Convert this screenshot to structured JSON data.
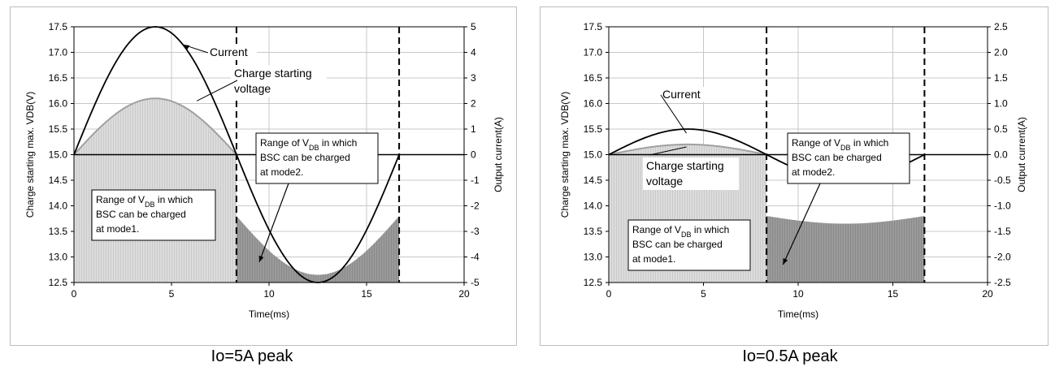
{
  "chart_data": [
    {
      "type": "line",
      "xlabel": "Time(ms)",
      "ylabel_left": "Charge starting max. VDB(V)",
      "ylabel_right": "Output current(A)",
      "xlim": [
        0,
        20
      ],
      "ylim_left": [
        12.5,
        17.5
      ],
      "ylim_right": [
        -5,
        5
      ],
      "x_ticks": [
        "0",
        "5",
        "10",
        "15",
        "20"
      ],
      "y_left_ticks": [
        "12.5",
        "13.0",
        "13.5",
        "14.0",
        "14.5",
        "15.0",
        "15.5",
        "16.0",
        "16.5",
        "17.0",
        "17.5"
      ],
      "y_right_ticks": [
        "-5",
        "-4",
        "-3",
        "-2",
        "-1",
        "0",
        "1",
        "2",
        "3",
        "4",
        "5"
      ],
      "period_ms": 16.67,
      "current_peak_A": 5,
      "charge_voltage_peak_V": 16.1,
      "mode2_voltage_min_V": 12.65,
      "mode2_voltage_end_V": 13.8,
      "baseline_V": 15.0,
      "dashed_lines_x": [
        8.33,
        16.67
      ],
      "grid": true,
      "annotations": {
        "current": "Current",
        "charge1": "Charge starting",
        "charge2": "voltage",
        "mode1_a": "Range of V",
        "mode1_sub": "DB",
        "mode1_b": " in which",
        "mode1_c": "BSC can be charged",
        "mode1_d": "at mode1.",
        "mode2_a": "Range of V",
        "mode2_sub": "DB",
        "mode2_b": " in which",
        "mode2_c": "BSC can be charged",
        "mode2_d": "at mode2."
      },
      "caption": "Io=5A peak"
    },
    {
      "type": "line",
      "xlabel": "Time(ms)",
      "ylabel_left": "Charge starting max. VDB(V)",
      "ylabel_right": "Output current(A)",
      "xlim": [
        0,
        20
      ],
      "ylim_left": [
        12.5,
        17.5
      ],
      "ylim_right": [
        -2.5,
        2.5
      ],
      "x_ticks": [
        "0",
        "5",
        "10",
        "15",
        "20"
      ],
      "y_left_ticks": [
        "12.5",
        "13.0",
        "13.5",
        "14.0",
        "14.5",
        "15.0",
        "15.5",
        "16.0",
        "16.5",
        "17.0",
        "17.5"
      ],
      "y_right_ticks": [
        "-2.5",
        "-2.0",
        "-1.5",
        "-1.0",
        "-0.5",
        "0.0",
        "0.5",
        "1.0",
        "1.5",
        "2.0",
        "2.5"
      ],
      "period_ms": 16.67,
      "current_peak_A": 0.5,
      "charge_voltage_peak_V": 15.2,
      "mode2_voltage_min_V": 13.65,
      "mode2_voltage_end_V": 13.8,
      "baseline_V": 15.0,
      "dashed_lines_x": [
        8.33,
        16.67
      ],
      "grid": true,
      "annotations": {
        "current": "Current",
        "charge1": "Charge starting",
        "charge2": "voltage",
        "mode1_a": "Range of V",
        "mode1_sub": "DB",
        "mode1_b": " in which",
        "mode1_c": "BSC can be charged",
        "mode1_d": "at mode1.",
        "mode2_a": "Range of V",
        "mode2_sub": "DB",
        "mode2_b": " in which",
        "mode2_c": "BSC can be charged",
        "mode2_d": "at mode2."
      },
      "caption": "Io=0.5A peak"
    }
  ]
}
